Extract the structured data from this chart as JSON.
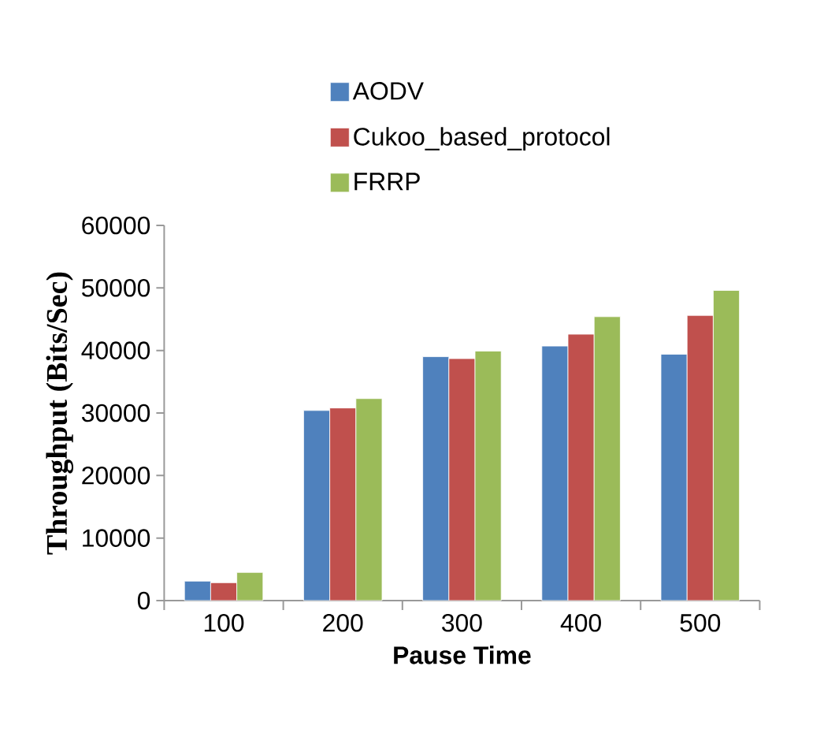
{
  "chart_data": {
    "type": "bar",
    "xlabel": "Pause Time",
    "ylabel": "Throughput (Bits/Sec)",
    "categories": [
      "100",
      "200",
      "300",
      "400",
      "500"
    ],
    "series": [
      {
        "name": "AODV",
        "color": "#4f81bd",
        "values": [
          3100,
          30400,
          39000,
          40700,
          39400
        ]
      },
      {
        "name": "Cukoo_based_protocol",
        "color": "#c0504d",
        "values": [
          2850,
          30800,
          38700,
          42600,
          45600
        ]
      },
      {
        "name": "FRRP",
        "color": "#9bbb59",
        "values": [
          4500,
          32300,
          39900,
          45400,
          49600
        ]
      }
    ],
    "ylim": [
      0,
      60000
    ],
    "yticks": [
      0,
      10000,
      20000,
      30000,
      40000,
      50000,
      60000
    ],
    "grid": false,
    "legend": "top"
  }
}
